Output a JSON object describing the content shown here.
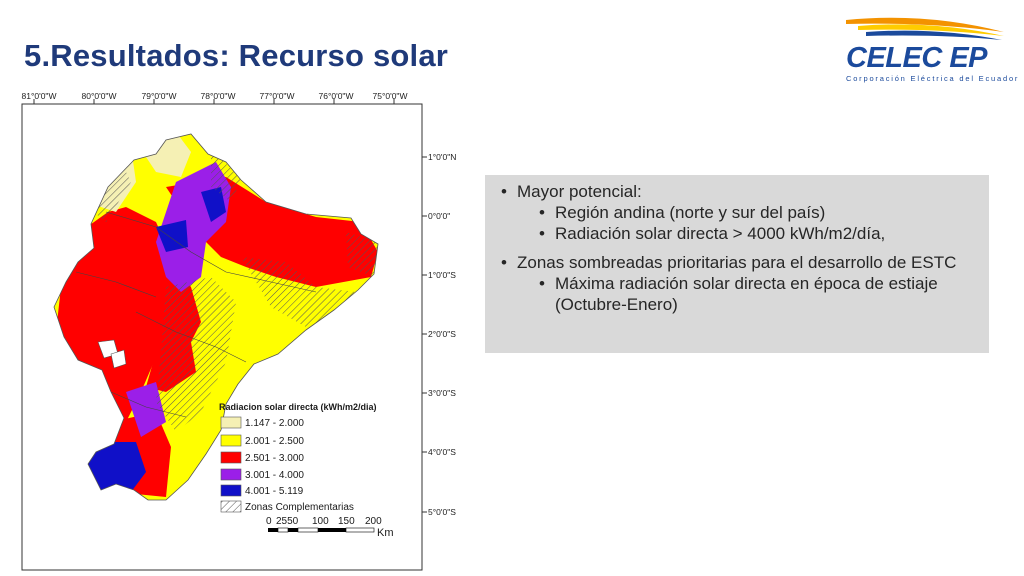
{
  "slide": {
    "title": "5.Resultados: Recurso solar"
  },
  "logo": {
    "name": "CELEC EP",
    "subtitle": "Corporación Eléctrica del Ecuador",
    "colors": {
      "blue": "#1b4a9c",
      "orange": "#f39200",
      "yellow": "#ffcc00"
    }
  },
  "map": {
    "lon_labels": [
      "81°0'0\"W",
      "80°0'0\"W",
      "79°0'0\"W",
      "78°0'0\"W",
      "77°0'0\"W",
      "76°0'0\"W",
      "75°0'0\"W"
    ],
    "lat_labels": [
      "1°0'0\"N",
      "0°0'0\"",
      "1°0'0\"S",
      "2°0'0\"S",
      "3°0'0\"S",
      "4°0'0\"S",
      "5°0'0\"S"
    ],
    "legend": {
      "title": "Radiacion solar directa (kWh/m2/dia)",
      "classes": [
        {
          "label": "1.147 - 2.000",
          "color": "#f5f0b4"
        },
        {
          "label": "2.001 - 2.500",
          "color": "#ffff00"
        },
        {
          "label": "2.501 - 3.000",
          "color": "#ff0000"
        },
        {
          "label": "3.001 - 4.000",
          "color": "#9b1fe8"
        },
        {
          "label": "4.001 - 5.119",
          "color": "#1010c8"
        }
      ],
      "hatch_label": "Zonas Complementarias"
    },
    "scale": {
      "labels": [
        "0",
        "2550",
        "100",
        "150",
        "200"
      ],
      "unit": "Km"
    }
  },
  "info": {
    "items": [
      {
        "level": 1,
        "text": "Mayor potencial:"
      },
      {
        "level": 2,
        "text": "Región andina (norte y sur del país)"
      },
      {
        "level": 2,
        "text": "Radiación solar directa  > 4000 kWh/m2/día,"
      },
      {
        "level": 1,
        "text": "Zonas sombreadas prioritarias para el desarrollo de ESTC"
      },
      {
        "level": 2,
        "text": "Máxima radiación solar directa en época de estiaje (Octubre-Enero)"
      }
    ]
  }
}
